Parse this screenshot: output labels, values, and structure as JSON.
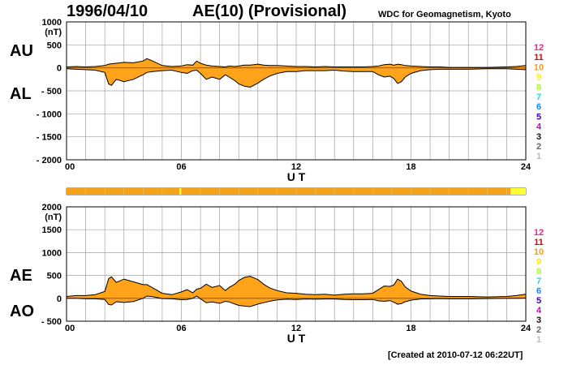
{
  "header": {
    "date": "1996/04/10",
    "title": "AE(10) (Provisional)",
    "org": "WDC for Geomagnetism, Kyoto"
  },
  "footer": {
    "created": "[Created at 2010-07-12 06:22UT]"
  },
  "colors": {
    "fill": "#ffa31a",
    "grid": "#a0a0a0",
    "outline": "#000000",
    "bar_main": "#f5a317",
    "bar_end": "#ffff33"
  },
  "station_scale": {
    "labels": [
      "12",
      "11",
      "10",
      "9",
      "8",
      "7",
      "6",
      "5",
      "4",
      "3",
      "2",
      "1"
    ],
    "colors": [
      "#ff1a8c",
      "#e00000",
      "#ff9900",
      "#ffee00",
      "#aaff22",
      "#22dddd",
      "#1188ff",
      "#3300cc",
      "#cc00cc",
      "#111111",
      "#666666",
      "#bbbbbb"
    ]
  },
  "station_bar": {
    "segments": [
      {
        "from": 0,
        "to": 5.9,
        "count": 10
      },
      {
        "from": 5.9,
        "to": 6.0,
        "count": 9
      },
      {
        "from": 6.0,
        "to": 23.2,
        "count": 10
      },
      {
        "from": 23.2,
        "to": 24,
        "count": 9
      }
    ]
  },
  "chart_data": [
    {
      "type": "area",
      "panel": "AU/AL",
      "ylabel": "(nT)",
      "xlabel": "U T",
      "ylim": [
        -2000,
        1000
      ],
      "yticks": [
        1000,
        500,
        0,
        -500,
        -1000,
        -1500,
        -2000
      ],
      "ytick_labels": [
        "1000",
        "500",
        "0",
        "- 500",
        "- 1000",
        "- 1500",
        "- 2000"
      ],
      "xlim": [
        0,
        24
      ],
      "xticks": [
        0,
        6,
        12,
        18,
        24
      ],
      "xtick_labels": [
        "00",
        "06",
        "12",
        "18",
        "24"
      ],
      "grid": true,
      "side_labels": [
        "AU",
        "AL"
      ],
      "x": [
        0,
        0.5,
        1,
        1.5,
        2,
        2.2,
        2.35,
        2.6,
        3,
        3.5,
        4,
        4.2,
        4.5,
        5,
        5.5,
        6,
        6.3,
        6.6,
        6.8,
        7,
        7.3,
        7.6,
        8,
        8.3,
        8.5,
        8.8,
        9,
        9.3,
        9.6,
        10,
        10.3,
        10.6,
        11,
        11.5,
        12,
        12.5,
        13,
        13.5,
        14,
        14.5,
        15,
        15.5,
        16,
        16.3,
        16.6,
        16.9,
        17.1,
        17.3,
        17.5,
        17.7,
        18,
        18.5,
        19,
        19.5,
        20,
        21,
        22,
        23,
        23.5,
        24
      ],
      "series": [
        {
          "name": "AU",
          "values": [
            20,
            30,
            20,
            30,
            50,
            80,
            90,
            100,
            120,
            110,
            150,
            200,
            150,
            50,
            30,
            40,
            70,
            60,
            150,
            100,
            60,
            40,
            30,
            20,
            40,
            30,
            40,
            60,
            60,
            80,
            60,
            50,
            50,
            40,
            30,
            30,
            20,
            30,
            20,
            20,
            20,
            20,
            30,
            40,
            70,
            80,
            60,
            80,
            70,
            50,
            40,
            30,
            20,
            20,
            10,
            10,
            10,
            20,
            30,
            50
          ]
        },
        {
          "name": "AL",
          "values": [
            -20,
            -30,
            -40,
            -50,
            -100,
            -350,
            -380,
            -250,
            -300,
            -250,
            -150,
            -100,
            -80,
            -60,
            -50,
            -100,
            -120,
            -60,
            -50,
            -120,
            -250,
            -200,
            -250,
            -150,
            -200,
            -280,
            -350,
            -400,
            -420,
            -330,
            -250,
            -180,
            -120,
            -80,
            -80,
            -60,
            -60,
            -60,
            -50,
            -70,
            -80,
            -80,
            -80,
            -150,
            -200,
            -180,
            -230,
            -340,
            -300,
            -200,
            -120,
            -60,
            -40,
            -30,
            -30,
            -30,
            -20,
            -20,
            -30,
            -40
          ]
        }
      ]
    },
    {
      "type": "area",
      "panel": "AE/AO",
      "ylabel": "(nT)",
      "xlabel": "U T",
      "ylim": [
        -500,
        2000
      ],
      "yticks": [
        2000,
        1500,
        1000,
        500,
        0,
        -500
      ],
      "ytick_labels": [
        "2000",
        "1500",
        "1000",
        "500",
        "0",
        "- 500"
      ],
      "xlim": [
        0,
        24
      ],
      "xticks": [
        0,
        6,
        12,
        18,
        24
      ],
      "xtick_labels": [
        "00",
        "06",
        "12",
        "18",
        "24"
      ],
      "grid": true,
      "side_labels": [
        "AE",
        "AO"
      ],
      "x": [
        0,
        0.5,
        1,
        1.5,
        2,
        2.2,
        2.35,
        2.6,
        3,
        3.5,
        4,
        4.2,
        4.5,
        5,
        5.5,
        6,
        6.3,
        6.6,
        6.8,
        7,
        7.3,
        7.6,
        8,
        8.3,
        8.5,
        8.8,
        9,
        9.3,
        9.6,
        10,
        10.3,
        10.6,
        11,
        11.5,
        12,
        12.5,
        13,
        13.5,
        14,
        14.5,
        15,
        15.5,
        16,
        16.3,
        16.6,
        16.9,
        17.1,
        17.3,
        17.5,
        17.7,
        18,
        18.5,
        19,
        19.5,
        20,
        21,
        22,
        23,
        23.5,
        24
      ],
      "series": [
        {
          "name": "AE",
          "values": [
            40,
            60,
            60,
            80,
            150,
            430,
            470,
            350,
            420,
            360,
            300,
            300,
            230,
            110,
            80,
            140,
            190,
            120,
            200,
            220,
            310,
            240,
            280,
            170,
            240,
            310,
            390,
            460,
            480,
            410,
            310,
            230,
            170,
            120,
            110,
            90,
            80,
            90,
            70,
            90,
            100,
            100,
            110,
            190,
            270,
            260,
            290,
            420,
            370,
            250,
            160,
            90,
            60,
            50,
            40,
            40,
            30,
            40,
            60,
            90
          ]
        },
        {
          "name": "AO",
          "values": [
            0,
            0,
            -10,
            -10,
            -25,
            -135,
            -145,
            -75,
            -90,
            -70,
            0,
            50,
            35,
            -5,
            -10,
            -30,
            -25,
            0,
            50,
            -10,
            -95,
            -80,
            -110,
            -65,
            -80,
            -125,
            -155,
            -170,
            -180,
            -125,
            -95,
            -65,
            -35,
            -20,
            -25,
            -15,
            -20,
            -15,
            -15,
            -25,
            -30,
            -30,
            -25,
            -55,
            -65,
            -50,
            -85,
            -130,
            -115,
            -75,
            -40,
            -15,
            -10,
            -5,
            -10,
            -10,
            -5,
            0,
            0,
            5
          ]
        }
      ]
    }
  ]
}
